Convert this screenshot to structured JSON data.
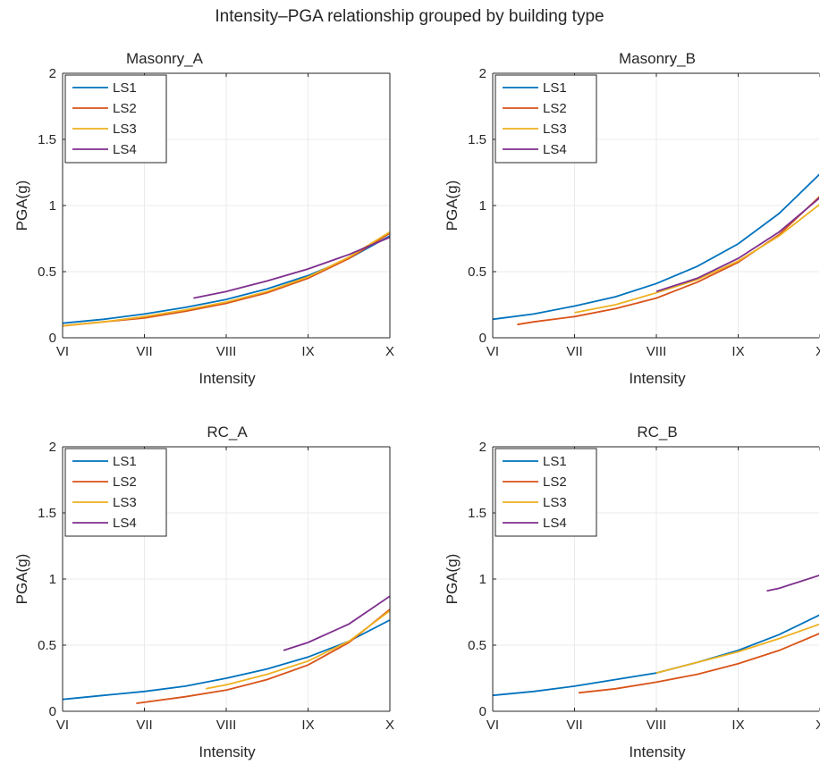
{
  "figure": {
    "title": "Intensity–PGA relationship grouped by building type"
  },
  "colors": {
    "LS1": "#0072BD",
    "LS2": "#D95319",
    "LS3": "#EDB120",
    "LS4": "#7E2F8E",
    "grid": "#ebebeb",
    "axis": "#262626"
  },
  "chart_data": [
    {
      "type": "line",
      "title": "Masonry_A",
      "xlabel": "Intensity",
      "ylabel": "PGA(g)",
      "x_tick_labels": [
        "VI",
        "VII",
        "VIII",
        "IX",
        "X"
      ],
      "xlim": [
        6,
        10
      ],
      "ylim": [
        0,
        2
      ],
      "yticks": [
        "0",
        "0.5",
        "1",
        "1.5",
        "2"
      ],
      "grid": true,
      "legend_position": "top-left",
      "series": [
        {
          "name": "LS1",
          "x": [
            6,
            6.5,
            7,
            7.5,
            8,
            8.5,
            9,
            9.5,
            10
          ],
          "y": [
            0.11,
            0.14,
            0.18,
            0.23,
            0.29,
            0.37,
            0.47,
            0.6,
            0.77
          ]
        },
        {
          "name": "LS2",
          "x": [
            6,
            6.5,
            7,
            7.5,
            8,
            8.5,
            9,
            9.5,
            10
          ],
          "y": [
            0.09,
            0.12,
            0.15,
            0.2,
            0.26,
            0.34,
            0.45,
            0.6,
            0.79
          ]
        },
        {
          "name": "LS3",
          "x": [
            6,
            6.5,
            7,
            7.5,
            8,
            8.5,
            9,
            9.5,
            10
          ],
          "y": [
            0.09,
            0.12,
            0.16,
            0.21,
            0.27,
            0.35,
            0.46,
            0.61,
            0.8
          ]
        },
        {
          "name": "LS4",
          "x": [
            7.6,
            8,
            8.5,
            9,
            9.5,
            10
          ],
          "y": [
            0.3,
            0.35,
            0.43,
            0.52,
            0.63,
            0.76
          ]
        }
      ]
    },
    {
      "type": "line",
      "title": "Masonry_B",
      "xlabel": "Intensity",
      "ylabel": "PGA(g)",
      "x_tick_labels": [
        "VI",
        "VII",
        "VIII",
        "IX",
        "X"
      ],
      "xlim": [
        6,
        10
      ],
      "ylim": [
        0,
        2
      ],
      "yticks": [
        "0",
        "0.5",
        "1",
        "1.5",
        "2"
      ],
      "grid": true,
      "legend_position": "top-left",
      "series": [
        {
          "name": "LS1",
          "x": [
            6,
            6.5,
            7,
            7.5,
            8,
            8.5,
            9,
            9.5,
            10
          ],
          "y": [
            0.14,
            0.18,
            0.24,
            0.31,
            0.41,
            0.54,
            0.71,
            0.94,
            1.24
          ]
        },
        {
          "name": "LS2",
          "x": [
            6.3,
            6.5,
            7,
            7.5,
            8,
            8.5,
            9,
            9.5,
            10
          ],
          "y": [
            0.1,
            0.12,
            0.16,
            0.22,
            0.3,
            0.42,
            0.57,
            0.78,
            1.07
          ]
        },
        {
          "name": "LS3",
          "x": [
            7,
            7.5,
            8,
            8.5,
            9,
            9.5,
            10
          ],
          "y": [
            0.19,
            0.25,
            0.34,
            0.44,
            0.58,
            0.77,
            1.01
          ]
        },
        {
          "name": "LS4",
          "x": [
            8,
            8.5,
            9,
            9.5,
            10
          ],
          "y": [
            0.35,
            0.45,
            0.6,
            0.8,
            1.06
          ]
        }
      ]
    },
    {
      "type": "line",
      "title": "RC_A",
      "xlabel": "Intensity",
      "ylabel": "PGA(g)",
      "x_tick_labels": [
        "VI",
        "VII",
        "VIII",
        "IX",
        "X"
      ],
      "xlim": [
        6,
        10
      ],
      "ylim": [
        0,
        2
      ],
      "yticks": [
        "0",
        "0.5",
        "1",
        "1.5",
        "2"
      ],
      "grid": true,
      "legend_position": "top-left",
      "series": [
        {
          "name": "LS1",
          "x": [
            6,
            6.5,
            7,
            7.5,
            8,
            8.5,
            9,
            9.5,
            10
          ],
          "y": [
            0.09,
            0.12,
            0.15,
            0.19,
            0.25,
            0.32,
            0.41,
            0.53,
            0.69
          ]
        },
        {
          "name": "LS2",
          "x": [
            6.9,
            7.5,
            8,
            8.5,
            9,
            9.5,
            10
          ],
          "y": [
            0.06,
            0.11,
            0.16,
            0.24,
            0.35,
            0.52,
            0.77
          ]
        },
        {
          "name": "LS3",
          "x": [
            7.75,
            8,
            8.5,
            9,
            9.5,
            10
          ],
          "y": [
            0.17,
            0.2,
            0.28,
            0.38,
            0.53,
            0.76
          ]
        },
        {
          "name": "LS4",
          "x": [
            8.7,
            9,
            9.5,
            10
          ],
          "y": [
            0.46,
            0.52,
            0.66,
            0.87
          ]
        }
      ]
    },
    {
      "type": "line",
      "title": "RC_B",
      "xlabel": "Intensity",
      "ylabel": "PGA(g)",
      "x_tick_labels": [
        "VI",
        "VII",
        "VIII",
        "IX",
        "X"
      ],
      "xlim": [
        6,
        10
      ],
      "ylim": [
        0,
        2
      ],
      "yticks": [
        "0",
        "0.5",
        "1",
        "1.5",
        "2"
      ],
      "grid": true,
      "legend_position": "top-left",
      "series": [
        {
          "name": "LS1",
          "x": [
            6,
            6.5,
            7,
            7.5,
            8,
            8.5,
            9,
            9.5,
            10
          ],
          "y": [
            0.12,
            0.15,
            0.19,
            0.24,
            0.29,
            0.37,
            0.46,
            0.58,
            0.73
          ]
        },
        {
          "name": "LS2",
          "x": [
            7.05,
            7.5,
            8,
            8.5,
            9,
            9.5,
            10
          ],
          "y": [
            0.14,
            0.17,
            0.22,
            0.28,
            0.36,
            0.46,
            0.59
          ]
        },
        {
          "name": "LS3",
          "x": [
            8,
            8.5,
            9,
            9.5,
            10
          ],
          "y": [
            0.29,
            0.37,
            0.45,
            0.55,
            0.66
          ]
        },
        {
          "name": "LS4",
          "x": [
            9.35,
            9.5,
            10
          ],
          "y": [
            0.91,
            0.93,
            1.03
          ]
        }
      ]
    }
  ]
}
